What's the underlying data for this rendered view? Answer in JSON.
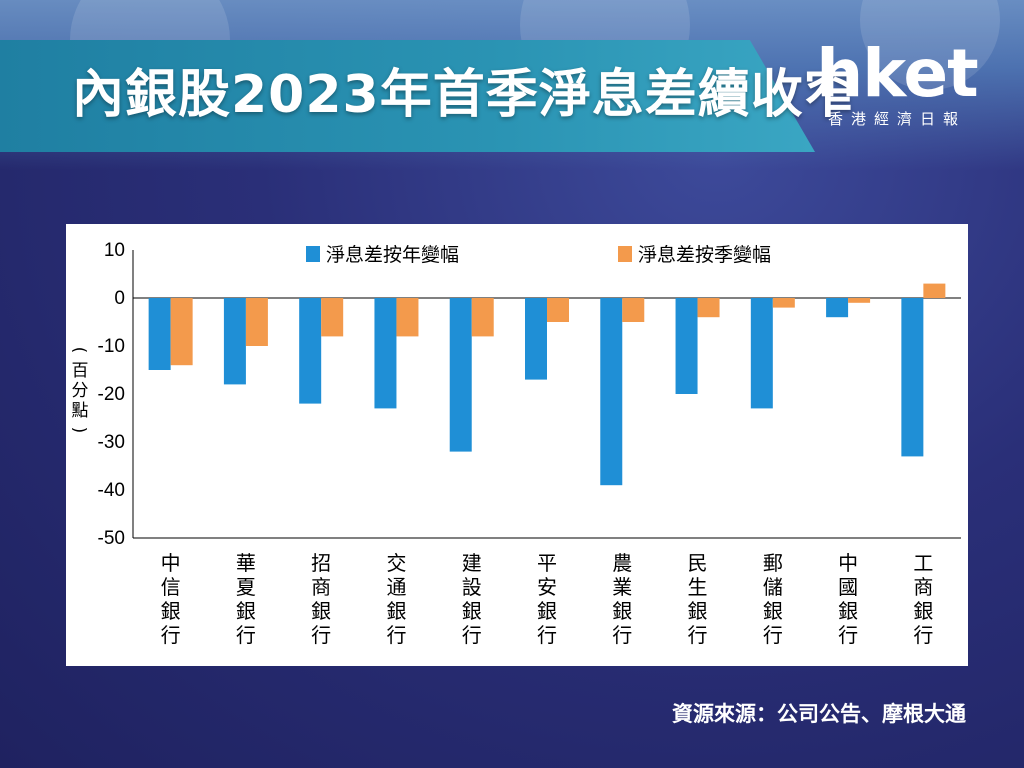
{
  "header": {
    "title": "內銀股2023年首季淨息差續收窄"
  },
  "logo": {
    "name": "hket",
    "subtitle": "香港經濟日報"
  },
  "source": "資源來源：公司公告、摩根大通",
  "colors": {
    "series_yoy": "#1f8fd6",
    "series_qoq": "#f39a4c"
  },
  "chart_data": {
    "type": "bar",
    "ylabel": "(百分點)",
    "ylim": [
      -50,
      10
    ],
    "yticks": [
      10,
      0,
      -10,
      -20,
      -30,
      -40,
      -50
    ],
    "legend_position": "top",
    "categories": [
      "中信銀行",
      "華夏銀行",
      "招商銀行",
      "交通銀行",
      "建設銀行",
      "平安銀行",
      "農業銀行",
      "民生銀行",
      "郵儲銀行",
      "中國銀行",
      "工商銀行"
    ],
    "series": [
      {
        "name": "淨息差按年變幅",
        "values": [
          -15,
          -18,
          -22,
          -23,
          -32,
          -17,
          -39,
          -20,
          -23,
          -4,
          -33
        ]
      },
      {
        "name": "淨息差按季變幅",
        "values": [
          -14,
          -10,
          -8,
          -8,
          -8,
          -5,
          -5,
          -4,
          -2,
          -1,
          3
        ]
      }
    ]
  }
}
